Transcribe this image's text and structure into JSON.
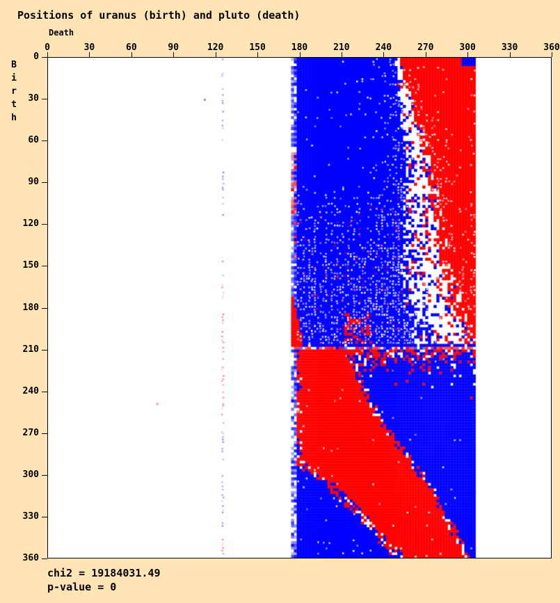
{
  "title": "Positions of uranus (birth) and pluto (death)",
  "axes": {
    "x": {
      "label": "Death",
      "min": 0,
      "max": 360,
      "ticks": [
        0,
        30,
        60,
        90,
        120,
        150,
        180,
        210,
        240,
        270,
        300,
        330,
        360
      ]
    },
    "y": {
      "label": "Birth",
      "min": 0,
      "max": 360,
      "ticks": [
        0,
        30,
        60,
        90,
        120,
        150,
        180,
        210,
        240,
        270,
        300,
        330,
        360
      ]
    }
  },
  "stats": {
    "chi2_line": "chi2 = 19184031.49",
    "pvalue_line": "p-value = 0",
    "chi2": 19184031.49,
    "p_value": 0
  },
  "chart_data": {
    "type": "heatmap",
    "title": "Positions of uranus (birth) and pluto (death)",
    "xlabel": "Death",
    "ylabel": "Birth",
    "xlim": [
      0,
      360
    ],
    "ylim": [
      0,
      360
    ],
    "grid": false,
    "colors": {
      "excess": "#ff0000",
      "deficit": "#0000ff",
      "empty": "#ffffff"
    },
    "band": {
      "death_start": 174,
      "death_end": 304
    },
    "upper": {
      "split_birth": 208,
      "boundary_blue_to_red": [
        [
          0,
          250
        ],
        [
          40,
          258
        ],
        [
          70,
          265
        ],
        [
          110,
          267
        ],
        [
          150,
          270
        ],
        [
          180,
          277
        ],
        [
          200,
          285
        ],
        [
          208,
          288
        ]
      ],
      "transition_halfwidth_base": 1.5,
      "transition_halfwidth_slope": 0.115,
      "texture_start_birth": 85,
      "corner_patch": {
        "birth_max": 6,
        "death_min": 297
      },
      "wedge": {
        "birth_from": 173,
        "slope": 0.22
      },
      "streak": {
        "birth_from": 185,
        "birth_to": 206,
        "death_from": 212,
        "death_to": 232,
        "density": 0.4
      },
      "left_red_speckle": [
        {
          "from": 68,
          "to": 112,
          "density": 0.55
        },
        {
          "from": 112,
          "to": 172,
          "density": 0.14
        }
      ]
    },
    "lower": {
      "red_blue_boundary": [
        [
          210,
          214
        ],
        [
          235,
          224
        ],
        [
          260,
          237
        ],
        [
          285,
          256
        ],
        [
          310,
          273
        ],
        [
          335,
          288
        ],
        [
          360,
          300
        ]
      ],
      "lower_left_blue_boundary": [
        [
          286,
          174
        ],
        [
          310,
          204
        ],
        [
          335,
          230
        ],
        [
          360,
          252
        ]
      ],
      "top_noise_decay": 7
    },
    "artifacts": {
      "faint_line_death": 125,
      "line_segments": [
        {
          "from": 0,
          "to": 60,
          "color": "blue",
          "density": 0.4
        },
        {
          "from": 60,
          "to": 120,
          "color": "blue",
          "density": 0.18
        },
        {
          "from": 120,
          "to": 162,
          "color": "red",
          "density": 0.18
        },
        {
          "from": 162,
          "to": 204,
          "color": "red",
          "density": 0.4
        },
        {
          "from": 204,
          "to": 272,
          "color": "red",
          "density": 0.6
        },
        {
          "from": 272,
          "to": 338,
          "color": "blue",
          "density": 0.5
        },
        {
          "from": 338,
          "to": 346,
          "color": "red",
          "density": 0.15
        },
        {
          "from": 346,
          "to": 360,
          "color": "red",
          "density": 0.85
        }
      ],
      "stray_dots": [
        {
          "death": 78,
          "birth": 249,
          "color": "red"
        },
        {
          "death": 112,
          "birth": 30,
          "color": "blue"
        }
      ]
    },
    "render": {
      "grid_cells": 180,
      "seed": 7
    }
  }
}
